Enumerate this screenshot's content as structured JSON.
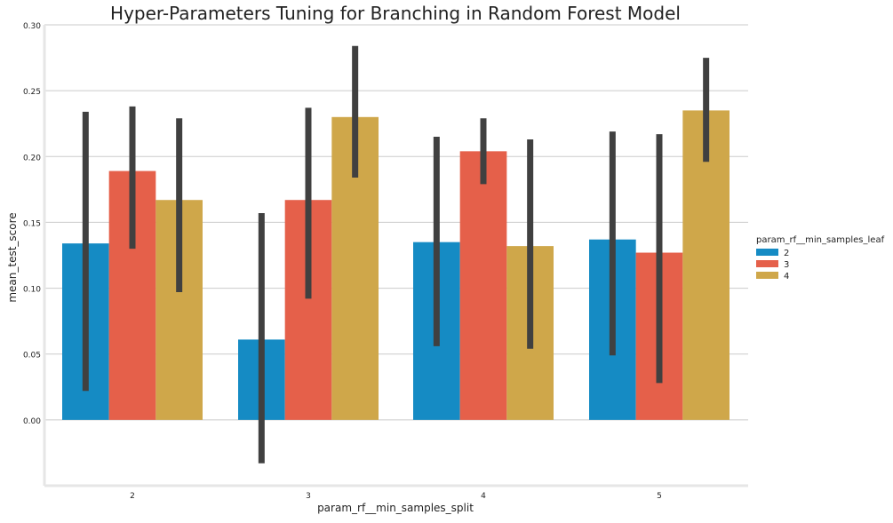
{
  "chart_data": {
    "type": "bar",
    "title": "Hyper-Parameters Tuning for Branching in Random Forest Model",
    "xlabel": "param_rf__min_samples_split",
    "ylabel": "mean_test_score",
    "categories": [
      "2",
      "3",
      "4",
      "5"
    ],
    "ylim": [
      -0.05,
      0.3
    ],
    "yticks": [
      "0.00",
      "0.05",
      "0.10",
      "0.15",
      "0.20",
      "0.25",
      "0.30"
    ],
    "grid": "horizontal",
    "legend": {
      "title": "param_rf__min_samples_leaf",
      "placement": "right"
    },
    "series": [
      {
        "name": "2",
        "color": "#158bc4",
        "values": [
          0.134,
          0.061,
          0.135,
          0.137
        ],
        "error_low": [
          0.022,
          -0.033,
          0.056,
          0.049
        ],
        "error_high": [
          0.234,
          0.157,
          0.215,
          0.219
        ]
      },
      {
        "name": "3",
        "color": "#e5604a",
        "values": [
          0.189,
          0.167,
          0.204,
          0.127
        ],
        "error_low": [
          0.13,
          0.092,
          0.179,
          0.028
        ],
        "error_high": [
          0.238,
          0.237,
          0.229,
          0.217
        ]
      },
      {
        "name": "4",
        "color": "#cfa74a",
        "values": [
          0.167,
          0.23,
          0.132,
          0.235
        ],
        "error_low": [
          0.097,
          0.184,
          0.054,
          0.196
        ],
        "error_high": [
          0.229,
          0.284,
          0.213,
          0.275
        ]
      }
    ],
    "error_bar_color": "#404040",
    "grid_color": "#cbcbcb",
    "axis_color": "#e6e6e6"
  }
}
